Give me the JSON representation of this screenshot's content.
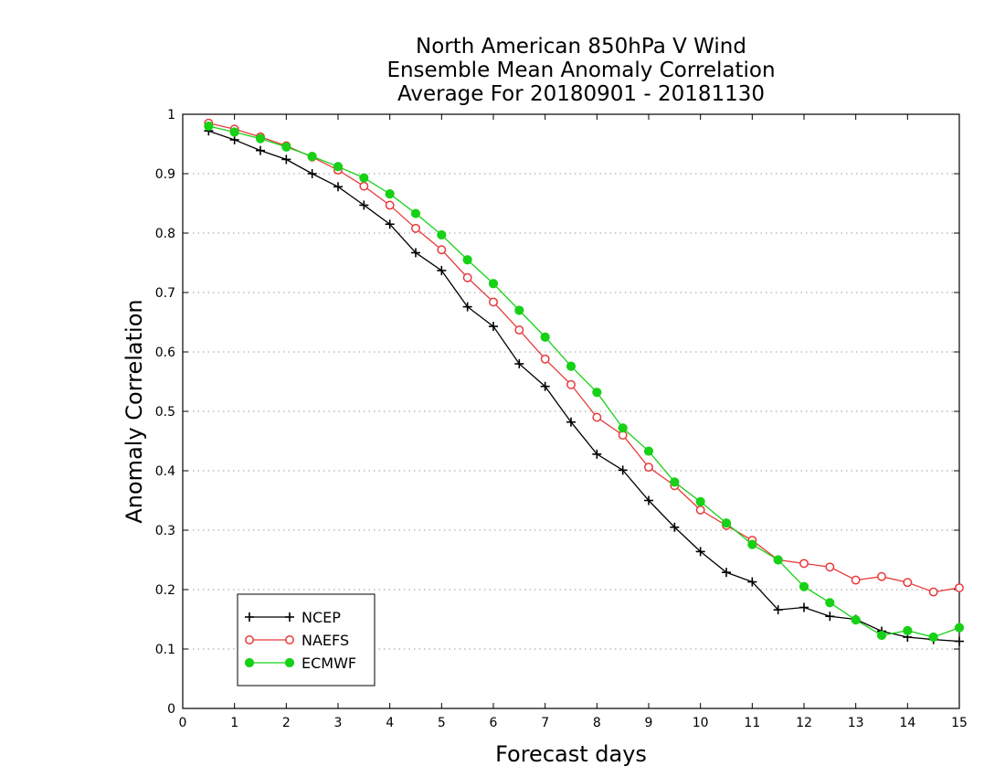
{
  "chart_data": {
    "type": "line",
    "title_lines": [
      "North American 850hPa V Wind",
      "Ensemble Mean Anomaly Correlation",
      "Average For 20180901 - 20181130"
    ],
    "xlabel": "Forecast days",
    "ylabel": "Anomaly Correlation",
    "xlim": [
      0,
      15
    ],
    "ylim": [
      0,
      1
    ],
    "xticks": [
      0,
      1,
      2,
      3,
      4,
      5,
      6,
      7,
      8,
      9,
      10,
      11,
      12,
      13,
      14,
      15
    ],
    "yticks": [
      0,
      0.1,
      0.2,
      0.3,
      0.4,
      0.5,
      0.6,
      0.7,
      0.8,
      0.9,
      1
    ],
    "grid": "horizontal dotted",
    "legend_position": "bottom-left",
    "series": [
      {
        "name": "NCEP",
        "color": "#000000",
        "marker": "plus",
        "x": [
          0.5,
          1,
          1.5,
          2,
          2.5,
          3,
          3.5,
          4,
          4.5,
          5,
          5.5,
          6,
          6.5,
          7,
          7.5,
          8,
          8.5,
          9,
          9.5,
          10,
          10.5,
          11,
          11.5,
          12,
          12.5,
          13,
          13.5,
          14,
          14.5,
          15
        ],
        "y": [
          0.972,
          0.957,
          0.939,
          0.924,
          0.9,
          0.878,
          0.847,
          0.815,
          0.767,
          0.737,
          0.676,
          0.643,
          0.58,
          0.542,
          0.482,
          0.428,
          0.401,
          0.35,
          0.305,
          0.264,
          0.229,
          0.213,
          0.166,
          0.17,
          0.155,
          0.15,
          0.13,
          0.12,
          0.116,
          0.113
        ]
      },
      {
        "name": "NAEFS",
        "color": "#e8393b",
        "marker": "open-circle",
        "x": [
          0.5,
          1,
          1.5,
          2,
          2.5,
          3,
          3.5,
          4,
          4.5,
          5,
          5.5,
          6,
          6.5,
          7,
          7.5,
          8,
          8.5,
          9,
          9.5,
          10,
          10.5,
          11,
          11.5,
          12,
          12.5,
          13,
          13.5,
          14,
          14.5,
          15
        ],
        "y": [
          0.985,
          0.975,
          0.962,
          0.947,
          0.928,
          0.906,
          0.879,
          0.847,
          0.808,
          0.772,
          0.725,
          0.684,
          0.637,
          0.588,
          0.545,
          0.49,
          0.46,
          0.406,
          0.375,
          0.334,
          0.308,
          0.283,
          0.25,
          0.244,
          0.238,
          0.216,
          0.222,
          0.212,
          0.196,
          0.203
        ]
      },
      {
        "name": "ECMWF",
        "color": "#17d117",
        "marker": "filled-circle",
        "x": [
          0.5,
          1,
          1.5,
          2,
          2.5,
          3,
          3.5,
          4,
          4.5,
          5,
          5.5,
          6,
          6.5,
          7,
          7.5,
          8,
          8.5,
          9,
          9.5,
          10,
          10.5,
          11,
          11.5,
          12,
          12.5,
          13,
          13.5,
          14,
          14.5,
          15
        ],
        "y": [
          0.98,
          0.97,
          0.959,
          0.945,
          0.929,
          0.912,
          0.893,
          0.866,
          0.833,
          0.797,
          0.755,
          0.715,
          0.67,
          0.625,
          0.576,
          0.532,
          0.472,
          0.433,
          0.381,
          0.348,
          0.312,
          0.276,
          0.25,
          0.205,
          0.178,
          0.149,
          0.123,
          0.131,
          0.12,
          0.136
        ]
      }
    ]
  }
}
